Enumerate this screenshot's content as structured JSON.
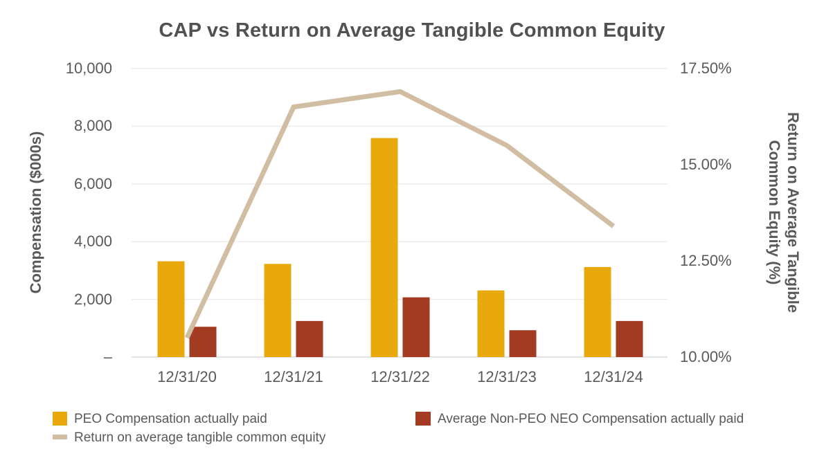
{
  "chart_data": {
    "type": "combo_bar_line",
    "title": "CAP vs Return on Average Tangible Common Equity",
    "categories": [
      "12/31/20",
      "12/31/21",
      "12/31/22",
      "12/31/23",
      "12/31/24"
    ],
    "series": [
      {
        "name": "PEO Compensation actually paid",
        "type": "bar",
        "axis": "left",
        "color": "#E9A90C",
        "values": [
          3320,
          3230,
          7590,
          2310,
          3120
        ]
      },
      {
        "name": "Average Non-PEO NEO Compensation actually paid",
        "type": "bar",
        "axis": "left",
        "color": "#A33A22",
        "values": [
          1050,
          1250,
          2070,
          930,
          1250
        ]
      },
      {
        "name": "Return on average tangible common equity",
        "type": "line",
        "axis": "right",
        "color": "#D1BEA2",
        "values": [
          10.5,
          16.5,
          16.9,
          15.5,
          13.4
        ]
      }
    ],
    "left_axis": {
      "label": "Compensation ($000s)",
      "lim": [
        0,
        10000
      ],
      "ticks": [
        {
          "v": 0,
          "label": "–"
        },
        {
          "v": 2000,
          "label": "2,000"
        },
        {
          "v": 4000,
          "label": "4,000"
        },
        {
          "v": 6000,
          "label": "6,000"
        },
        {
          "v": 8000,
          "label": "8,000"
        },
        {
          "v": 10000,
          "label": "10,000"
        }
      ]
    },
    "right_axis": {
      "label": "Return on Average Tangible Common Equity (%)",
      "label_lines": [
        "Return on Average Tangible",
        "Common Equity (%)"
      ],
      "lim": [
        10,
        17.5
      ],
      "ticks": [
        {
          "v": 10,
          "label": "10.00%"
        },
        {
          "v": 12.5,
          "label": "12.50%"
        },
        {
          "v": 15,
          "label": "15.00%"
        },
        {
          "v": 17.5,
          "label": "17.50%"
        }
      ]
    },
    "grid": true,
    "legend_position": "bottom-left"
  },
  "colors": {
    "text": "#595959",
    "title": "#515151",
    "gridline": "#ECECEC",
    "baseline": "#E3E3E3"
  }
}
